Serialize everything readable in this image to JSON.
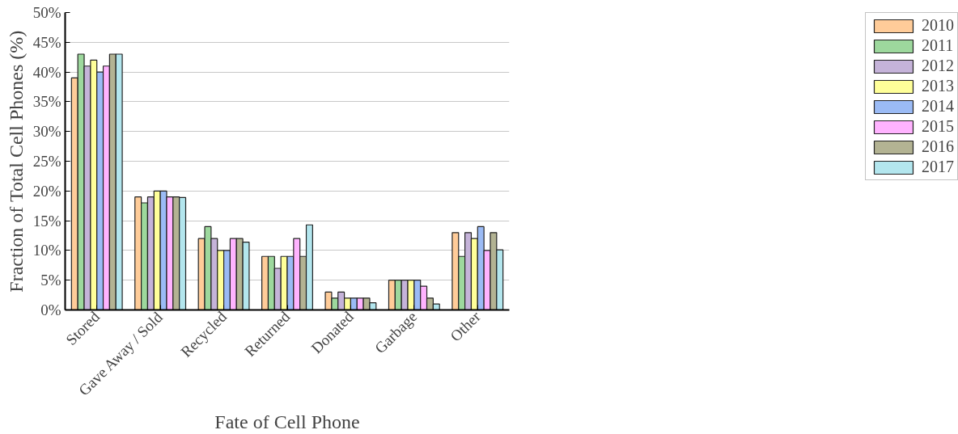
{
  "chart_data": {
    "type": "bar",
    "xlabel": "Fate of Cell Phone",
    "ylabel": "Fraction of Total Cell Phones (%)",
    "categories": [
      "Stored",
      "Gave Away / Sold",
      "Recycled",
      "Returned",
      "Donated",
      "Garbage",
      "Other"
    ],
    "series": [
      {
        "name": "2010",
        "color": "#ffcc99",
        "values": [
          39,
          19,
          12,
          9,
          3,
          5,
          13
        ]
      },
      {
        "name": "2011",
        "color": "#9dd89d",
        "values": [
          43,
          18,
          14,
          9,
          2,
          5,
          9
        ]
      },
      {
        "name": "2012",
        "color": "#c5b3d9",
        "values": [
          41,
          19,
          12,
          7,
          3,
          5,
          13
        ]
      },
      {
        "name": "2013",
        "color": "#ffff99",
        "values": [
          42,
          20,
          10,
          9,
          2,
          5,
          12
        ]
      },
      {
        "name": "2014",
        "color": "#9bbbf5",
        "values": [
          40,
          20,
          10,
          9,
          2,
          5,
          14
        ]
      },
      {
        "name": "2015",
        "color": "#ffb3ff",
        "values": [
          41,
          19,
          12,
          12,
          2,
          4,
          10
        ]
      },
      {
        "name": "2016",
        "color": "#b3b393",
        "values": [
          43,
          19,
          12,
          9,
          2,
          2,
          13
        ]
      },
      {
        "name": "2017",
        "color": "#b3e6ee",
        "values": [
          43,
          18.9,
          11.4,
          14.3,
          1.2,
          1,
          10.1
        ]
      }
    ],
    "ylim": [
      0,
      50
    ],
    "yticks": [
      {
        "value": 0,
        "label": "0%"
      },
      {
        "value": 5,
        "label": "5%"
      },
      {
        "value": 10,
        "label": "10%"
      },
      {
        "value": 15,
        "label": "15%"
      },
      {
        "value": 20,
        "label": "20%"
      },
      {
        "value": 25,
        "label": "25%"
      },
      {
        "value": 30,
        "label": "30%"
      },
      {
        "value": 35,
        "label": "35%"
      },
      {
        "value": 40,
        "label": "40%"
      },
      {
        "value": 45,
        "label": "45%"
      },
      {
        "value": 50,
        "label": "50%"
      }
    ],
    "grid": "y",
    "legend": "top right"
  }
}
